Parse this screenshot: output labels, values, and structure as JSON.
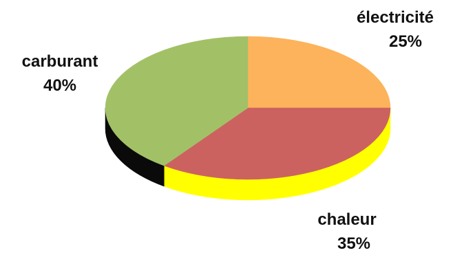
{
  "chart_data": {
    "type": "pie",
    "style": "3d",
    "title": "",
    "slices": [
      {
        "label": "électricité",
        "percent_label": "25%",
        "value": 25,
        "color": "#FDB35B",
        "side_color": "#000000"
      },
      {
        "label": "chaleur",
        "percent_label": "35%",
        "value": 35,
        "color": "#CC6260",
        "side_color": "#FFFF00"
      },
      {
        "label": "carburant",
        "percent_label": "40%",
        "value": 40,
        "color": "#A2C167",
        "side_color": "#0A0A0A"
      }
    ]
  }
}
